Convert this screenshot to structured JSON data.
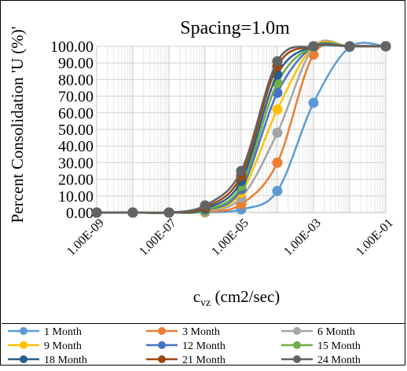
{
  "chart_data": {
    "type": "line",
    "title": "Spacing=1.0m",
    "xlabel": "c_vz (cm2/sec)",
    "xlabel_main": "c",
    "xlabel_sub": "vz",
    "xlabel_rest": " (cm2/sec)",
    "ylabel": "Percent Consolidation 'U (%)'",
    "x_scale": "log",
    "xlim": [
      1e-09,
      0.1
    ],
    "ylim": [
      0,
      100
    ],
    "x_tick_labels": [
      "1.00E-09",
      "1.00E-07",
      "1.00E-05",
      "1.00E-03",
      "1.00E-01"
    ],
    "y_tick_labels": [
      "0.00",
      "10.00",
      "20.00",
      "30.00",
      "40.00",
      "50.00",
      "60.00",
      "70.00",
      "80.00",
      "90.00",
      "100.00"
    ],
    "grid": true,
    "legend_position": "bottom",
    "x": [
      1e-09,
      1e-08,
      1e-07,
      1e-06,
      1e-05,
      0.0001,
      0.001,
      0.01,
      0.1
    ],
    "series": [
      {
        "name": "1 Month",
        "color": "#5B9BD5",
        "values": [
          0,
          0,
          0,
          0.1,
          1.9,
          13,
          66,
          99.5,
          100
        ]
      },
      {
        "name": "3 Month",
        "color": "#ED7D31",
        "values": [
          0,
          0,
          0,
          0.3,
          5,
          30,
          95,
          100,
          100
        ]
      },
      {
        "name": "6 Month",
        "color": "#A5A5A5",
        "values": [
          0,
          0,
          0,
          0.6,
          9,
          48,
          99.5,
          100,
          100
        ]
      },
      {
        "name": "9 Month",
        "color": "#FFC000",
        "values": [
          0,
          0,
          0,
          0.9,
          12,
          62,
          100,
          100,
          100
        ]
      },
      {
        "name": "12 Month",
        "color": "#4472C4",
        "values": [
          0,
          0,
          0,
          1.2,
          14,
          72,
          100,
          100,
          100
        ]
      },
      {
        "name": "15 Month",
        "color": "#70AD47",
        "values": [
          0,
          0,
          0,
          1.6,
          16,
          78,
          100,
          100,
          100
        ]
      },
      {
        "name": "18 Month",
        "color": "#255E91",
        "values": [
          0,
          0,
          0,
          2.3,
          19,
          83,
          100,
          100,
          100
        ]
      },
      {
        "name": "21 Month",
        "color": "#9E480E",
        "values": [
          0,
          0,
          0,
          3.2,
          22,
          88,
          100,
          100,
          100
        ]
      },
      {
        "name": "24 Month",
        "color": "#636363",
        "values": [
          0,
          0,
          0,
          4.3,
          25,
          91,
          100,
          100,
          100
        ]
      }
    ]
  }
}
